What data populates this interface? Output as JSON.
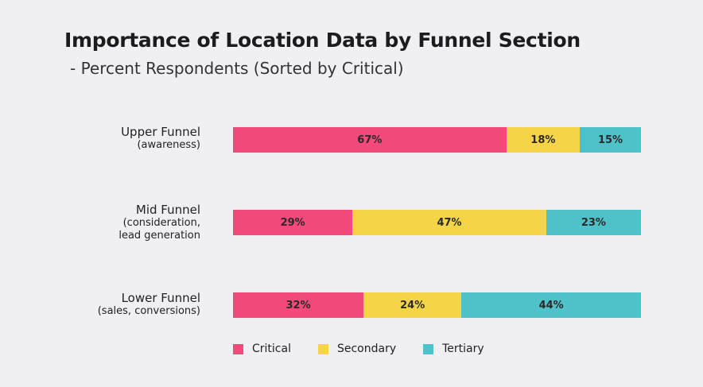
{
  "colors": {
    "critical": "#f24a7a",
    "secondary": "#f5d547",
    "tertiary": "#4fc1c8",
    "background": "#f0eff4"
  },
  "chart_data": {
    "type": "bar",
    "orientation": "horizontal",
    "stacked": true,
    "title": "Importance of Location Data by Funnel Section",
    "subtitle": "- Percent Respondents (Sorted by Critical)",
    "categories": [
      {
        "main": "Upper Funnel",
        "sub": [
          "(awareness)"
        ]
      },
      {
        "main": "Mid Funnel",
        "sub": [
          "(consideration,",
          "lead generation"
        ]
      },
      {
        "main": "Lower Funnel",
        "sub": [
          "(sales, conversions)"
        ]
      }
    ],
    "series": [
      {
        "name": "Critical",
        "color_key": "critical",
        "values": [
          67,
          29,
          32
        ],
        "labels": [
          "67%",
          "29%",
          "32%"
        ]
      },
      {
        "name": "Secondary",
        "color_key": "secondary",
        "values": [
          18,
          47,
          24
        ],
        "labels": [
          "18%",
          "47%",
          "24%"
        ]
      },
      {
        "name": "Tertiary",
        "color_key": "tertiary",
        "values": [
          15,
          23,
          44
        ],
        "labels": [
          "15%",
          "23%",
          "44%"
        ]
      }
    ],
    "value_unit": "%",
    "grid": false,
    "legend_position": "bottom"
  }
}
